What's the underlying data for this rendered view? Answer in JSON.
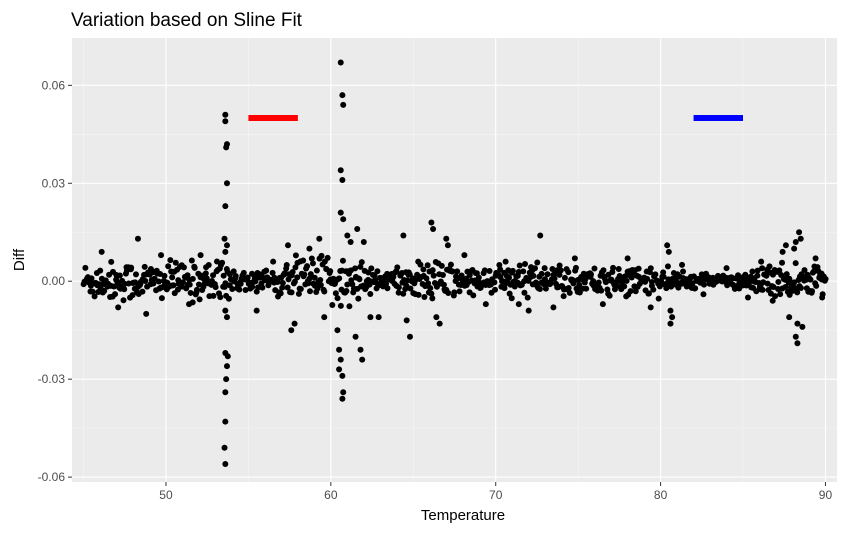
{
  "chart_data": {
    "type": "scatter",
    "title": "Variation based on Sline Fit",
    "xlabel": "Temperature",
    "ylabel": "Diff",
    "xlim": [
      44.3,
      90.7
    ],
    "ylim": [
      -0.0615,
      0.0745
    ],
    "xticks": [
      {
        "value": 50,
        "label": "50"
      },
      {
        "value": 60,
        "label": "60"
      },
      {
        "value": 70,
        "label": "70"
      },
      {
        "value": 80,
        "label": "80"
      },
      {
        "value": 90,
        "label": "90"
      }
    ],
    "yticks": [
      {
        "value": -0.06,
        "label": "-0.06"
      },
      {
        "value": -0.03,
        "label": "-0.03"
      },
      {
        "value": 0.0,
        "label": "0.00"
      },
      {
        "value": 0.03,
        "label": "0.03"
      },
      {
        "value": 0.06,
        "label": "0.06"
      }
    ],
    "grid": true,
    "background": "#ebebeb",
    "point_color": "#000000",
    "segments": [
      {
        "x0": 55.0,
        "x1": 58.0,
        "y": 0.05,
        "color": "#ff0000"
      },
      {
        "x0": 82.0,
        "x1": 85.0,
        "y": 0.05,
        "color": "#0000ff"
      }
    ],
    "points": [
      [
        53.6,
        0.051
      ],
      [
        53.6,
        0.049
      ],
      [
        53.7,
        0.042
      ],
      [
        53.65,
        0.041
      ],
      [
        53.7,
        0.03
      ],
      [
        53.6,
        0.023
      ],
      [
        53.55,
        0.013
      ],
      [
        53.7,
        0.011
      ],
      [
        53.6,
        0.009
      ],
      [
        53.6,
        -0.009
      ],
      [
        53.7,
        -0.011
      ],
      [
        53.6,
        -0.022
      ],
      [
        53.75,
        -0.023
      ],
      [
        53.7,
        -0.026
      ],
      [
        53.65,
        -0.03
      ],
      [
        53.6,
        -0.034
      ],
      [
        53.6,
        -0.043
      ],
      [
        53.55,
        -0.051
      ],
      [
        53.6,
        -0.056
      ],
      [
        60.6,
        0.067
      ],
      [
        60.7,
        0.057
      ],
      [
        60.75,
        0.054
      ],
      [
        60.6,
        0.034
      ],
      [
        60.7,
        0.031
      ],
      [
        60.6,
        0.021
      ],
      [
        60.75,
        0.019
      ],
      [
        61.0,
        0.014
      ],
      [
        61.6,
        0.016
      ],
      [
        61.2,
        0.012
      ],
      [
        60.4,
        -0.015
      ],
      [
        60.5,
        -0.021
      ],
      [
        60.6,
        -0.024
      ],
      [
        60.5,
        -0.027
      ],
      [
        60.7,
        -0.029
      ],
      [
        60.75,
        -0.034
      ],
      [
        60.7,
        -0.036
      ],
      [
        61.5,
        -0.017
      ],
      [
        61.8,
        -0.021
      ],
      [
        61.9,
        -0.024
      ],
      [
        46.1,
        0.009
      ],
      [
        47.1,
        -0.008
      ],
      [
        48.3,
        0.013
      ],
      [
        48.8,
        -0.01
      ],
      [
        49.7,
        0.008
      ],
      [
        51.4,
        -0.007
      ],
      [
        52.1,
        0.008
      ],
      [
        55.5,
        -0.009
      ],
      [
        56.5,
        0.006
      ],
      [
        57.4,
        0.011
      ],
      [
        57.6,
        -0.015
      ],
      [
        57.8,
        -0.013
      ],
      [
        58.7,
        0.01
      ],
      [
        59.3,
        0.013
      ],
      [
        59.6,
        -0.011
      ],
      [
        62.0,
        0.012
      ],
      [
        62.4,
        -0.011
      ],
      [
        62.9,
        -0.011
      ],
      [
        64.4,
        0.014
      ],
      [
        64.6,
        -0.012
      ],
      [
        64.8,
        -0.017
      ],
      [
        65.3,
        0.006
      ],
      [
        66.1,
        0.018
      ],
      [
        66.2,
        0.016
      ],
      [
        66.4,
        -0.011
      ],
      [
        66.6,
        -0.013
      ],
      [
        67.0,
        0.013
      ],
      [
        67.1,
        0.011
      ],
      [
        68.1,
        0.008
      ],
      [
        69.4,
        -0.007
      ],
      [
        70.6,
        0.006
      ],
      [
        71.4,
        -0.007
      ],
      [
        72.0,
        -0.009
      ],
      [
        72.7,
        0.014
      ],
      [
        73.5,
        -0.008
      ],
      [
        74.8,
        0.007
      ],
      [
        76.5,
        -0.007
      ],
      [
        78.0,
        0.007
      ],
      [
        79.4,
        -0.008
      ],
      [
        80.4,
        0.011
      ],
      [
        80.5,
        0.009
      ],
      [
        80.6,
        -0.009
      ],
      [
        80.7,
        -0.011
      ],
      [
        80.6,
        -0.013
      ],
      [
        81.3,
        0.005
      ],
      [
        82.6,
        -0.004
      ],
      [
        84.0,
        0.004
      ],
      [
        85.3,
        -0.005
      ],
      [
        86.1,
        0.006
      ],
      [
        86.8,
        -0.006
      ],
      [
        87.4,
        0.009
      ],
      [
        87.6,
        0.011
      ],
      [
        87.8,
        -0.011
      ],
      [
        88.1,
        0.01
      ],
      [
        88.2,
        0.012
      ],
      [
        88.3,
        -0.013
      ],
      [
        88.2,
        -0.017
      ],
      [
        88.3,
        -0.019
      ],
      [
        88.4,
        0.015
      ],
      [
        88.5,
        0.013
      ],
      [
        88.6,
        -0.014
      ],
      [
        89.4,
        0.007
      ],
      [
        89.8,
        -0.005
      ]
    ],
    "band": {
      "x_range": [
        45.0,
        90.0
      ],
      "step": 0.05,
      "noise": [
        [
          45.0,
          0.0065
        ],
        [
          53.0,
          0.0065
        ],
        [
          53.5,
          0.009
        ],
        [
          54.2,
          0.0045
        ],
        [
          55.0,
          0.005
        ],
        [
          57.0,
          0.005
        ],
        [
          58.0,
          0.009
        ],
        [
          60.0,
          0.008
        ],
        [
          62.0,
          0.008
        ],
        [
          63.0,
          0.0035
        ],
        [
          65.0,
          0.005
        ],
        [
          67.0,
          0.0075
        ],
        [
          68.0,
          0.0045
        ],
        [
          72.5,
          0.006
        ],
        [
          76.0,
          0.0045
        ],
        [
          80.0,
          0.0055
        ],
        [
          82.0,
          0.0025
        ],
        [
          85.0,
          0.0025
        ],
        [
          86.5,
          0.006
        ],
        [
          90.0,
          0.0055
        ]
      ],
      "seed": 12345
    }
  }
}
